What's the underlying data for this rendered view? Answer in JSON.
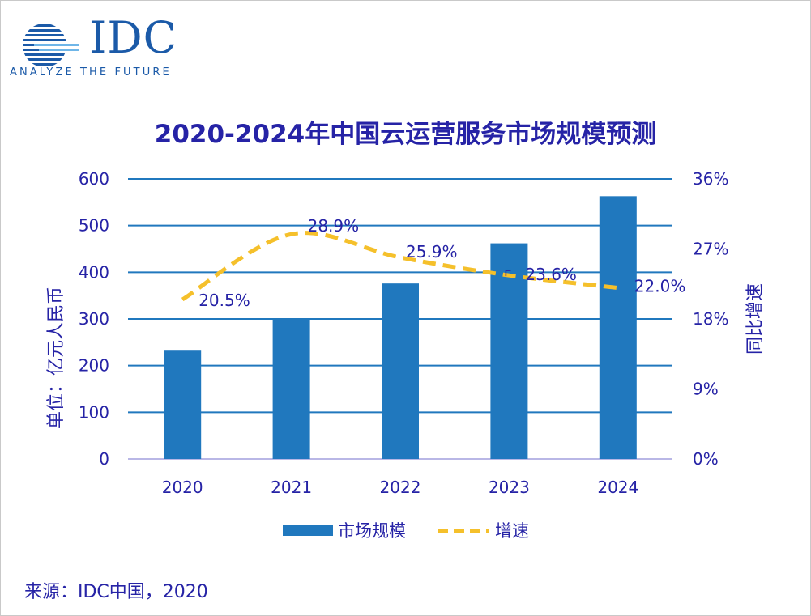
{
  "logo": {
    "name": "IDC",
    "tagline": "ANALYZE THE FUTURE"
  },
  "chart_data": {
    "type": "bar",
    "title": "2020-2024年中国云运营服务市场规模预测",
    "categories": [
      "2020",
      "2021",
      "2022",
      "2023",
      "2024"
    ],
    "series": [
      {
        "name": "市场规模",
        "type": "bar",
        "axis": "left",
        "values": [
          232,
          299,
          376,
          462,
          563
        ],
        "color": "#2078be"
      },
      {
        "name": "增速",
        "type": "line",
        "style": "dashed",
        "smooth": true,
        "axis": "right",
        "values": [
          20.5,
          28.9,
          25.9,
          23.6,
          22.0
        ],
        "color": "#f5c02b"
      }
    ],
    "data_labels": [
      "20.5%",
      "28.9%",
      "25.9%",
      "23.6%",
      "22.0%"
    ],
    "ylabel": "单位：亿元人民币",
    "ylabel_right": "同比增速",
    "ylim": [
      0,
      600
    ],
    "yticks": [
      "0",
      "100",
      "200",
      "300",
      "400",
      "500",
      "600"
    ],
    "ylim_right": [
      0,
      36
    ],
    "yticks_right": [
      "0%",
      "9%",
      "18%",
      "27%",
      "36%"
    ],
    "grid": true,
    "legend_position": "bottom"
  },
  "source": "来源：IDC中国，2020",
  "colors": {
    "text": "#2623a6",
    "bar": "#2078be",
    "line": "#f5c02b",
    "grid": "#2078be"
  }
}
